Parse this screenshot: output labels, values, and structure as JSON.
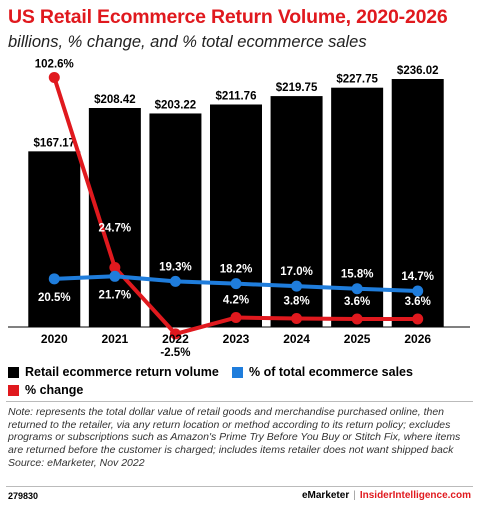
{
  "header": {
    "title": "US Retail Ecommerce Return Volume, 2020-2026",
    "subtitle": "billions, % change, and % total ecommerce sales"
  },
  "chart_data": {
    "type": "bar",
    "categories": [
      "2020",
      "2021",
      "2022",
      "2023",
      "2024",
      "2025",
      "2026"
    ],
    "series": [
      {
        "name": "Retail ecommerce return volume",
        "type": "bar",
        "color": "#000000",
        "values": [
          167.17,
          208.42,
          203.22,
          211.76,
          219.75,
          227.75,
          236.02
        ],
        "labels": [
          "$167.17",
          "$208.42",
          "$203.22",
          "$211.76",
          "$219.75",
          "$227.75",
          "$236.02"
        ]
      },
      {
        "name": "% of total ecommerce sales",
        "type": "line",
        "color": "#1f7ddc",
        "values": [
          20.5,
          21.7,
          19.3,
          18.2,
          17.0,
          15.8,
          14.7
        ],
        "labels": [
          "20.5%",
          "21.7%",
          "19.3%",
          "18.2%",
          "17.0%",
          "15.8%",
          "14.7%"
        ]
      },
      {
        "name": "% change",
        "type": "line",
        "color": "#e0191e",
        "values": [
          102.6,
          24.7,
          -2.5,
          4.2,
          3.8,
          3.6,
          3.6
        ],
        "labels": [
          "102.6%",
          "24.7%",
          "-2.5%",
          "4.2%",
          "3.8%",
          "3.6%",
          "3.6%"
        ]
      }
    ]
  },
  "legend": {
    "items": [
      {
        "label": "Retail ecommerce return volume",
        "color": "#000000"
      },
      {
        "label": "% of total ecommerce sales",
        "color": "#1f7ddc"
      },
      {
        "label": "% change",
        "color": "#e0191e"
      }
    ]
  },
  "note": {
    "text": "Note: represents the total dollar value of retail goods and merchandise purchased online, then returned to the retailer, via any return location or method according to its return policy; excludes programs or subscriptions such as Amazon's Prime Try Before You Buy or Stitch Fix, where items are returned before the customer is charged; includes items retailer does not want shipped back",
    "source": "Source: eMarketer, Nov 2022"
  },
  "footer": {
    "id": "279830",
    "brand1": "eMarketer",
    "separator": "|",
    "brand2": "InsiderIntelligence.com"
  }
}
